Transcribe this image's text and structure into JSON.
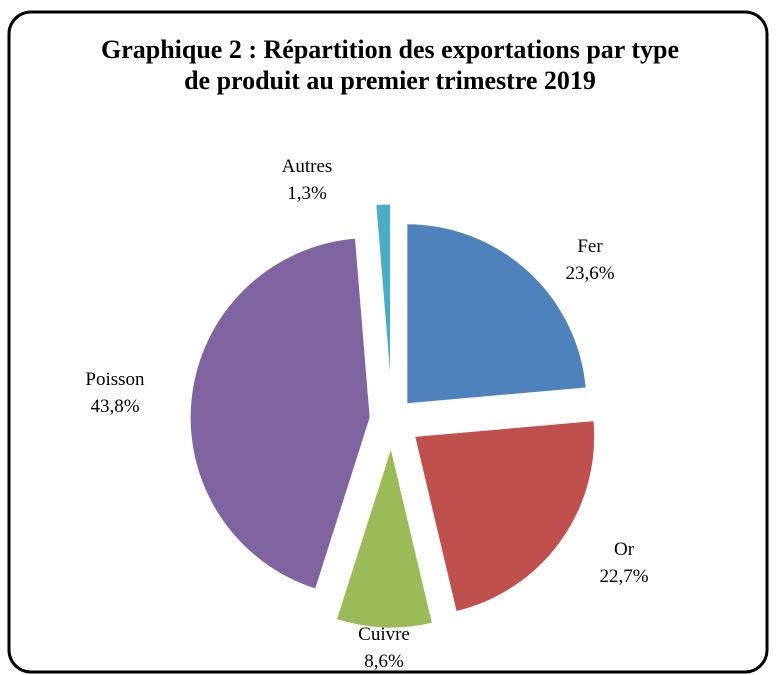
{
  "chart_data": {
    "type": "pie",
    "title": "Graphique  2 : Répartition des exportations par type de produit au  premier trimestre 2019",
    "categories": [
      "Fer",
      "Or",
      "Cuivre",
      "Poisson",
      "Autres"
    ],
    "values": [
      23.6,
      22.7,
      8.6,
      43.8,
      1.3
    ],
    "value_labels": [
      "23,6%",
      "22,7%",
      "8,6%",
      "43,8%",
      "1,3%"
    ],
    "colors": [
      "#4f81bd",
      "#c0504d",
      "#9bbb59",
      "#8064a2",
      "#4bacc6"
    ]
  }
}
